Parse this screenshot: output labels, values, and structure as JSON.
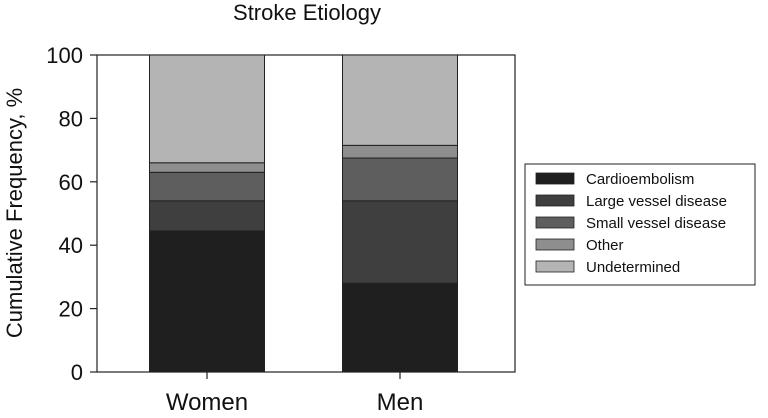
{
  "chart_data": {
    "type": "bar",
    "stacked": true,
    "title": "Stroke Etiology",
    "xlabel": "",
    "ylabel": "Cumulative Frequency, %",
    "ylim": [
      0,
      100
    ],
    "yticks": [
      0,
      20,
      40,
      60,
      80,
      100
    ],
    "grid": false,
    "legend_position": "right",
    "categories": [
      "Women",
      "Men"
    ],
    "series": [
      {
        "name": "Cardioembolism",
        "color": "#1f1f1f",
        "values": [
          44.5,
          28
        ]
      },
      {
        "name": "Large vessel disease",
        "color": "#3f3f3f",
        "values": [
          9.5,
          26
        ]
      },
      {
        "name": "Small vessel disease",
        "color": "#5e5e5e",
        "values": [
          9,
          13.5
        ]
      },
      {
        "name": "Other",
        "color": "#8e8e8e",
        "values": [
          3,
          4
        ]
      },
      {
        "name": "Undetermined",
        "color": "#b4b4b4",
        "values": [
          34,
          28.5
        ]
      }
    ]
  }
}
